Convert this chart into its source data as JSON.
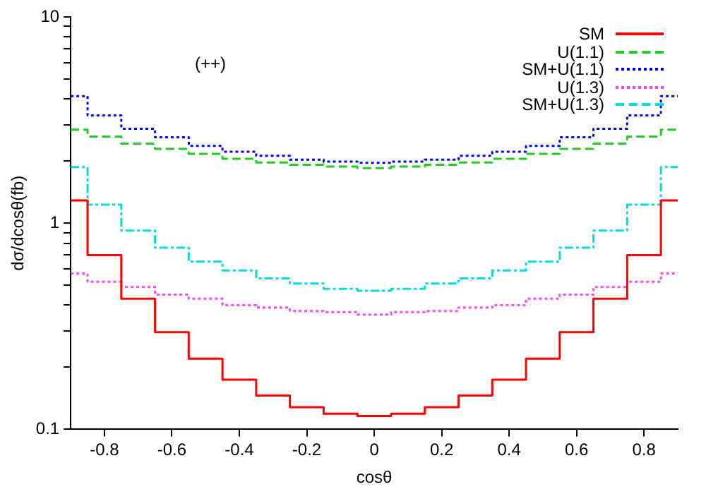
{
  "chart_data": {
    "type": "step",
    "xlabel": "cosθ",
    "ylabel": "dσ/dcosθ(fb)",
    "annotations": [
      "(++)"
    ],
    "log": "y",
    "grid": false,
    "legend": "top right",
    "marker": "none",
    "x": [
      -0.9,
      -0.8,
      -0.7,
      -0.6,
      -0.5,
      -0.4,
      -0.3,
      -0.2,
      -0.1,
      0,
      0.1,
      0.2,
      0.3,
      0.4,
      0.5,
      0.6,
      0.7,
      0.8,
      0.9
    ],
    "xlim": [
      -0.9,
      0.9
    ],
    "xticks": [
      -0.8,
      -0.6,
      -0.4,
      -0.2,
      0,
      0.2,
      0.4,
      0.6,
      0.8
    ],
    "ylim": [
      0.1,
      10
    ],
    "yticks": [
      0.1,
      {
        "value": 0.2,
        "label": null
      },
      {
        "value": 0.3,
        "label": null
      },
      {
        "value": 0.4,
        "label": null
      },
      {
        "value": 0.5,
        "label": null
      },
      {
        "value": 0.6,
        "label": null
      },
      {
        "value": 0.7,
        "label": null
      },
      {
        "value": 0.8,
        "label": null
      },
      {
        "value": 0.9,
        "label": null
      },
      1,
      {
        "value": 2,
        "label": null
      },
      {
        "value": 3,
        "label": null
      },
      {
        "value": 4,
        "label": null
      },
      {
        "value": 5,
        "label": null
      },
      {
        "value": 6,
        "label": null
      },
      {
        "value": 7,
        "label": null
      },
      {
        "value": 8,
        "label": null
      },
      {
        "value": 9,
        "label": null
      },
      10
    ],
    "series": [
      {
        "name": "SM",
        "color": "#ff0000",
        "line_style": "solid",
        "values": [
          1.29,
          0.7,
          0.43,
          0.296,
          0.22,
          0.174,
          0.146,
          0.128,
          0.119,
          0.116,
          0.119,
          0.128,
          0.146,
          0.174,
          0.22,
          0.296,
          0.43,
          0.7,
          1.29
        ]
      },
      {
        "name": "U(1.1)",
        "color": "#22cc22",
        "line_style": "dashed",
        "values": [
          2.84,
          2.63,
          2.43,
          2.29,
          2.17,
          2.05,
          1.97,
          1.92,
          1.88,
          1.85,
          1.88,
          1.92,
          1.97,
          2.05,
          2.17,
          2.29,
          2.43,
          2.63,
          2.84
        ]
      },
      {
        "name": "SM+U(1.1)",
        "color": "#0000ff",
        "line_style": "dotted",
        "values": [
          4.13,
          3.33,
          2.87,
          2.61,
          2.37,
          2.22,
          2.12,
          2.03,
          1.99,
          1.96,
          1.99,
          2.03,
          2.12,
          2.22,
          2.37,
          2.61,
          2.87,
          3.33,
          4.13
        ]
      },
      {
        "name": "U(1.3)",
        "color": "#ff44ff",
        "line_style": "dotted",
        "values": [
          0.57,
          0.52,
          0.49,
          0.45,
          0.43,
          0.4,
          0.39,
          0.375,
          0.37,
          0.36,
          0.37,
          0.375,
          0.39,
          0.4,
          0.43,
          0.45,
          0.49,
          0.52,
          0.57
        ]
      },
      {
        "name": "SM+U(1.3)",
        "color": "#00dddd",
        "line_style": "dashdot",
        "values": [
          1.87,
          1.23,
          0.92,
          0.76,
          0.65,
          0.59,
          0.54,
          0.51,
          0.48,
          0.47,
          0.48,
          0.51,
          0.54,
          0.59,
          0.65,
          0.76,
          0.92,
          1.23,
          1.87
        ]
      }
    ]
  }
}
